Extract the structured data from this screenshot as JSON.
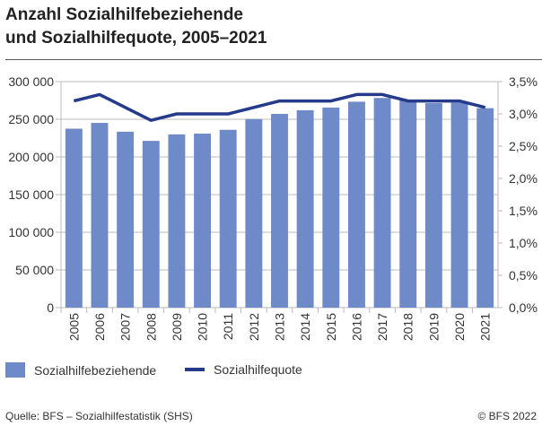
{
  "title_line1": "Anzahl Sozialhilfebeziehende",
  "title_line2": "und Sozialhilfequote, 2005–2021",
  "source": "Quelle: BFS – Sozialhilfestatistik (SHS)",
  "copyright": "© BFS 2022",
  "colors": {
    "bars": "#6e8ac8",
    "line": "#253a8a",
    "grid": "#bbbbbb"
  },
  "chart_data": {
    "type": "bar+line",
    "categories": [
      "2005",
      "2006",
      "2007",
      "2008",
      "2009",
      "2010",
      "2011",
      "2012",
      "2013",
      "2014",
      "2015",
      "2016",
      "2017",
      "2018",
      "2019",
      "2020",
      "2021"
    ],
    "series": [
      {
        "name": "Sozialhilfebeziehende",
        "type": "bar",
        "axis": "left",
        "values": [
          237500,
          245200,
          233500,
          221300,
          230000,
          231000,
          236000,
          250300,
          257200,
          262000,
          265600,
          273300,
          278300,
          275400,
          271400,
          272100,
          264700
        ]
      },
      {
        "name": "Sozialhilfequote",
        "type": "line",
        "axis": "right",
        "values": [
          3.2,
          3.3,
          3.1,
          2.9,
          3.0,
          3.0,
          3.0,
          3.1,
          3.2,
          3.2,
          3.2,
          3.3,
          3.3,
          3.2,
          3.2,
          3.2,
          3.1
        ]
      }
    ],
    "y_left": {
      "range": [
        0,
        300000
      ],
      "ticks": [
        "0",
        "50 000",
        "100 000",
        "150 000",
        "200 000",
        "250 000",
        "300 000"
      ]
    },
    "y_right": {
      "range": [
        0,
        3.5
      ],
      "ticks": [
        "0,0%",
        "0,5%",
        "1,0%",
        "1,5%",
        "2,0%",
        "2,5%",
        "3,0%",
        "3,5%"
      ]
    },
    "grid": true,
    "legend": "bottom"
  }
}
